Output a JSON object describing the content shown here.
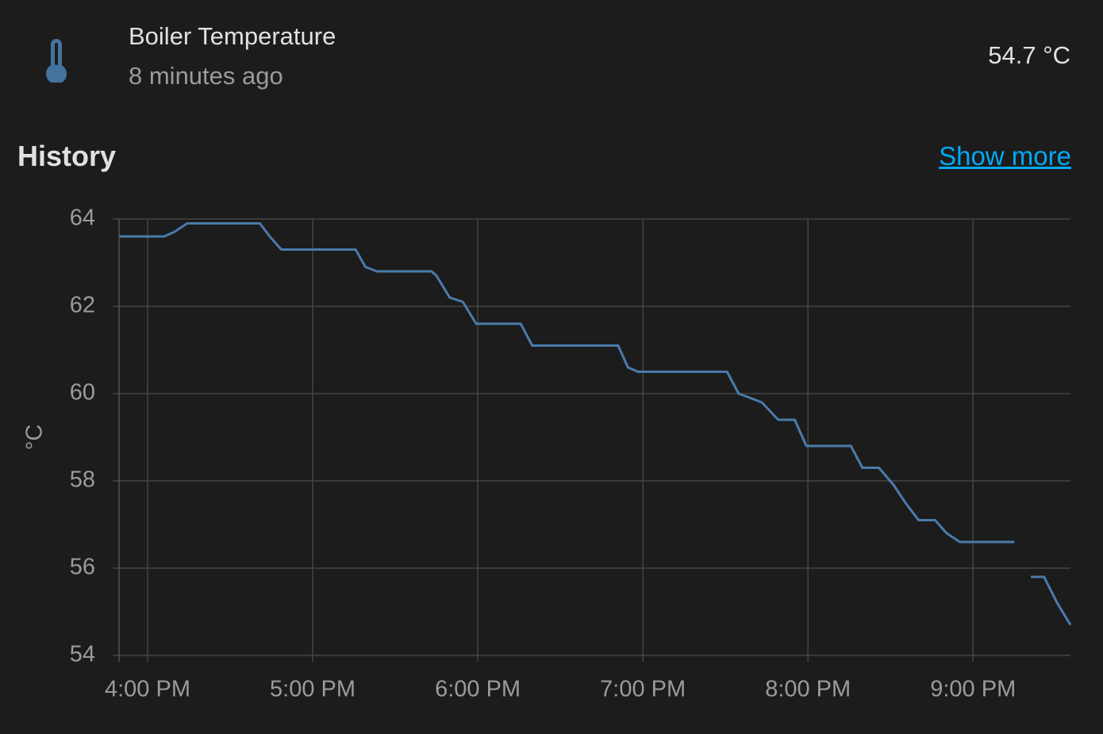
{
  "header": {
    "name": "Boiler Temperature",
    "updated": "8 minutes ago",
    "state": "54.7 °C"
  },
  "history": {
    "title": "History",
    "link": "Show more"
  },
  "chart_data": {
    "type": "line",
    "y_label": "°C",
    "grid": true,
    "xlim": [
      15.827,
      21.59
    ],
    "ylim": [
      54,
      64
    ],
    "xticks": [
      {
        "value": 16,
        "label": "4:00 PM"
      },
      {
        "value": 17,
        "label": "5:00 PM"
      },
      {
        "value": 18,
        "label": "6:00 PM"
      },
      {
        "value": 19,
        "label": "7:00 PM"
      },
      {
        "value": 20,
        "label": "8:00 PM"
      },
      {
        "value": 21,
        "label": "9:00 PM"
      }
    ],
    "yticks": [
      54,
      56,
      58,
      60,
      62,
      64
    ],
    "x": [
      15.83,
      16.1,
      16.16,
      16.24,
      16.68,
      16.74,
      16.81,
      17.26,
      17.32,
      17.39,
      17.72,
      17.75,
      17.83,
      17.91,
      17.99,
      18.26,
      18.33,
      18.85,
      18.91,
      18.97,
      19.51,
      19.58,
      19.72,
      19.82,
      19.92,
      19.99,
      20.26,
      20.33,
      20.43,
      20.52,
      20.59,
      20.67,
      20.77,
      20.84,
      20.92,
      21.25,
      21.3,
      21.35,
      21.43,
      21.51,
      21.59
    ],
    "series": [
      {
        "color": "#4a7bab",
        "values": [
          63.6,
          63.6,
          63.7,
          63.9,
          63.9,
          63.6,
          63.3,
          63.3,
          62.9,
          62.8,
          62.8,
          62.7,
          62.2,
          62.1,
          61.6,
          61.6,
          61.1,
          61.1,
          60.6,
          60.5,
          60.5,
          60.0,
          59.8,
          59.4,
          59.4,
          58.8,
          58.8,
          58.3,
          58.3,
          57.9,
          57.5,
          57.1,
          57.1,
          56.8,
          56.6,
          56.6,
          null,
          55.8,
          55.8,
          55.2,
          54.7
        ]
      }
    ]
  }
}
